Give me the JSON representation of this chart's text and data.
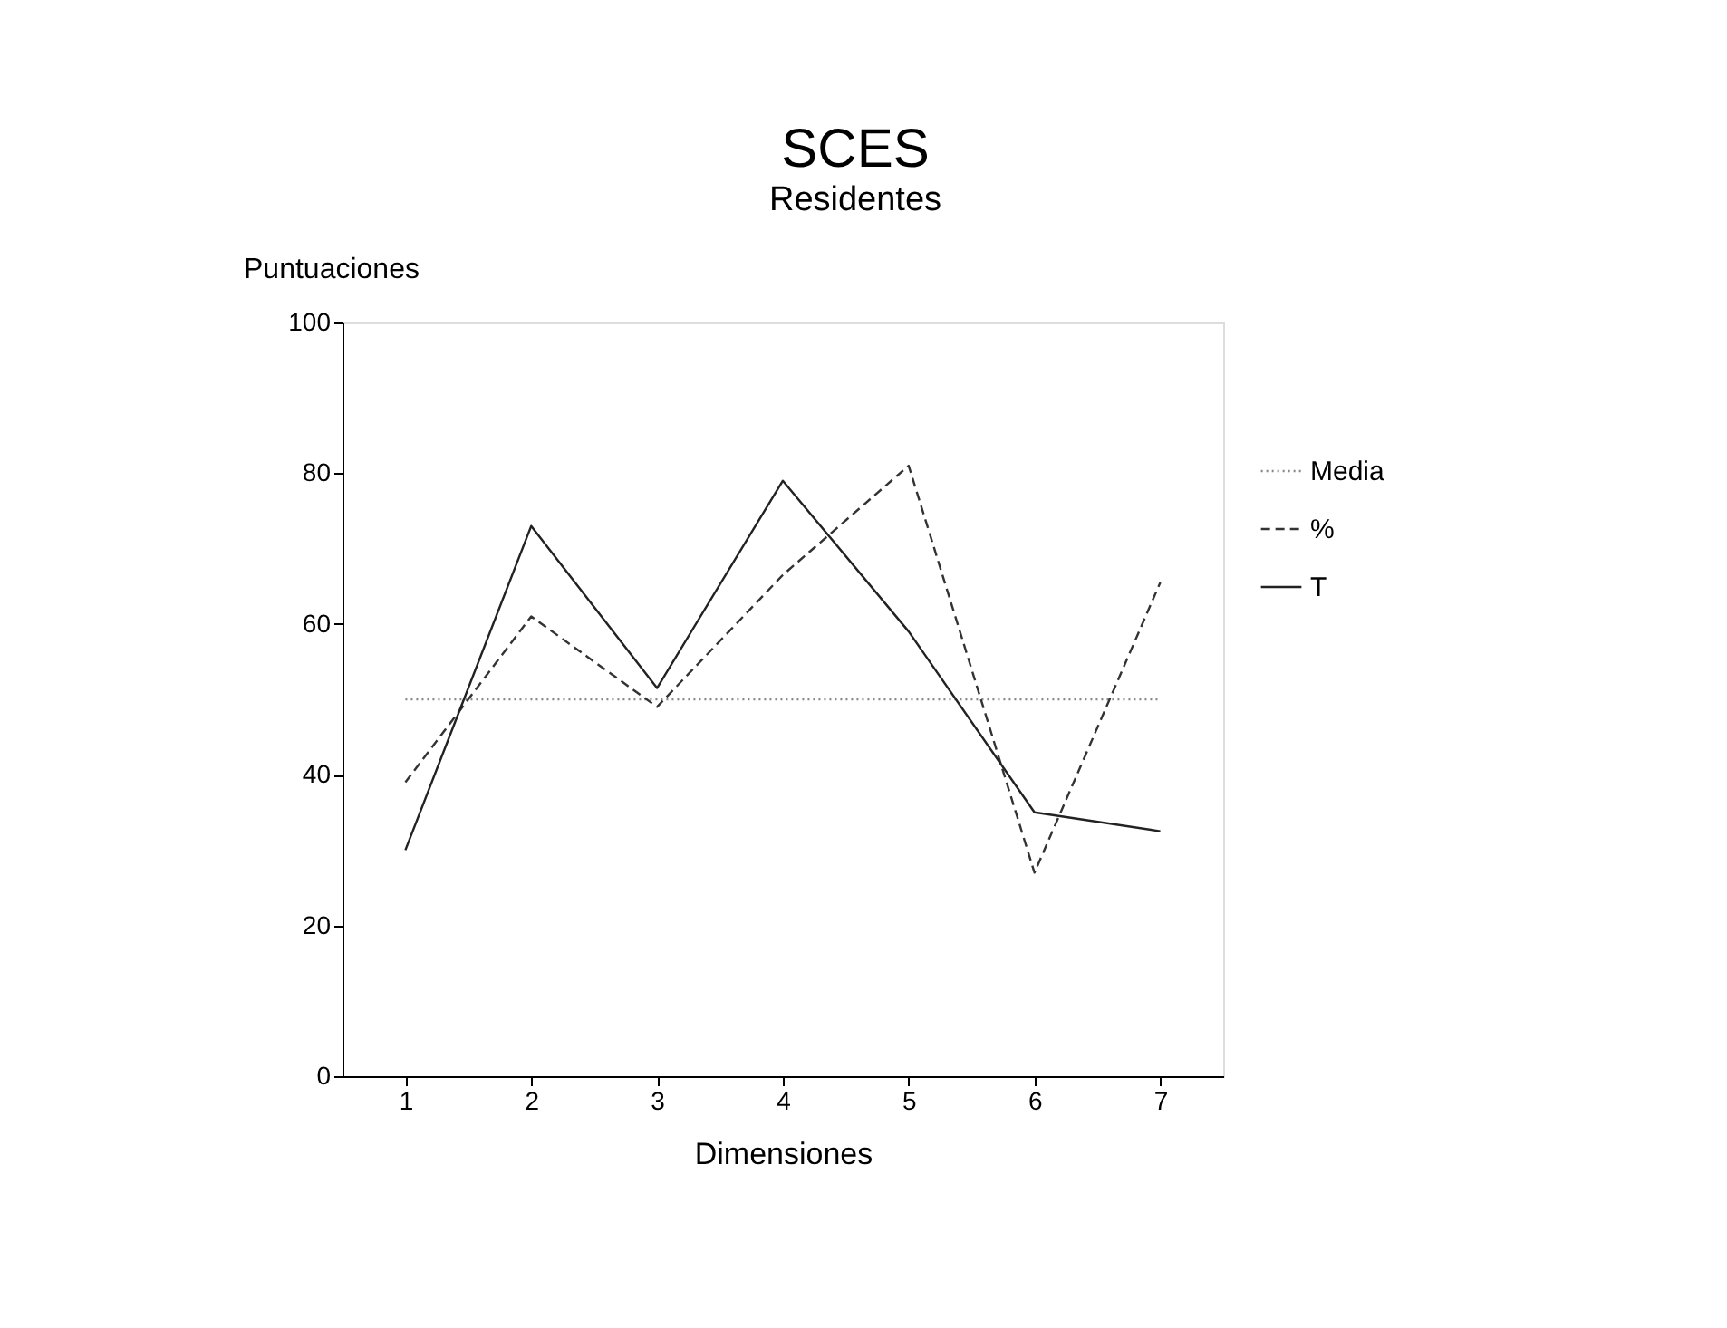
{
  "chart_data": {
    "type": "line",
    "title": "SCES",
    "subtitle": "Residentes",
    "xlabel": "Dimensiones",
    "ylabel": "Puntuaciones",
    "x": [
      1,
      2,
      3,
      4,
      5,
      6,
      7
    ],
    "series": [
      {
        "name": "Media",
        "color": "#888888",
        "line_style": "dotted",
        "values": [
          50,
          50,
          50,
          50,
          50,
          50,
          50
        ]
      },
      {
        "name": "%",
        "color": "#333333",
        "line_style": "dashed",
        "values": [
          39,
          61,
          49,
          66.5,
          81,
          27,
          65.5
        ]
      },
      {
        "name": "T",
        "color": "#222222",
        "line_style": "solid",
        "values": [
          30,
          73,
          51.5,
          79,
          59,
          35,
          32.5
        ]
      }
    ],
    "xlim": [
      0.5,
      7.5
    ],
    "xticks": [
      1,
      2,
      3,
      4,
      5,
      6,
      7
    ],
    "ylim": [
      0,
      100
    ],
    "yticks": [
      0,
      20,
      40,
      60,
      80,
      100
    ],
    "grid": false,
    "legend": "right",
    "marker": "none"
  }
}
